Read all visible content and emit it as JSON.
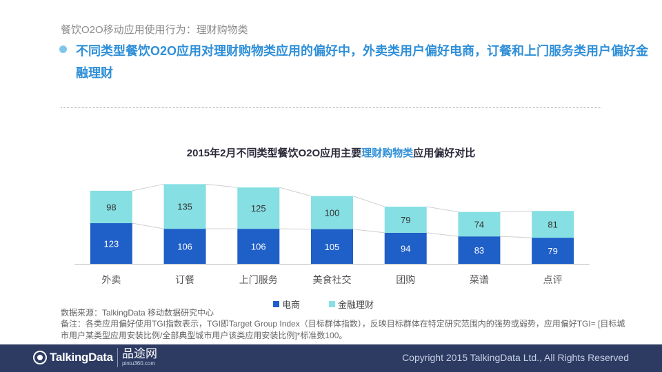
{
  "section_title": "餐饮O2O移动应用使用行为：理财购物类",
  "headline": "不同类型餐饮O2O应用对理财购物类应用的偏好中，外卖类用户偏好电商，订餐和上门服务类用户偏好金融理财",
  "chart_title": {
    "prefix": "2015年2月不同类型餐饮O2O应用主要",
    "highlight": "理财购物类",
    "suffix": "应用偏好对比"
  },
  "chart_data": {
    "type": "bar",
    "stacked": true,
    "title": "2015年2月不同类型餐饮O2O应用主要理财购物类应用偏好对比",
    "categories": [
      "外卖",
      "订餐",
      "上门服务",
      "美食社交",
      "团购",
      "菜谱",
      "点评"
    ],
    "series": [
      {
        "name": "电商",
        "values": [
          123,
          106,
          106,
          105,
          94,
          83,
          79
        ]
      },
      {
        "name": "金融理财",
        "values": [
          98,
          135,
          125,
          100,
          79,
          74,
          81
        ]
      }
    ],
    "xlabel": "",
    "ylabel": "",
    "ylim": [
      0,
      260
    ],
    "grid": false,
    "legend": "bottom"
  },
  "colors": {
    "ecommerce": "#1f5fc8",
    "finance": "#86dfe2",
    "accent": "#2f8fd8",
    "footer": "#2d3b63"
  },
  "source": "数据来源：TalkingData 移动数据研究中心",
  "note": "备注：各类应用偏好使用TGI指数表示，TGI即Target Group Index（目标群体指数），反映目标群体在特定研究范围内的强势或弱势，应用偏好TGI= [目标城市用户某类型应用安装比例/全部典型城市用户该类应用安装比例]*标准数100。",
  "footer": {
    "logo": "TalkingData",
    "partner_name": "品途网",
    "partner_url": "pintu360.com",
    "copyright": "Copyright 2015 TalkingData Ltd., All Rights Reserved"
  }
}
